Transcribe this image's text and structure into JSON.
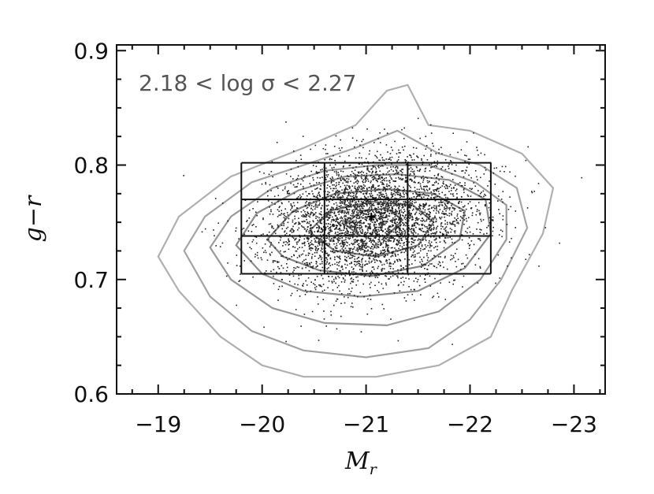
{
  "chart_data": {
    "type": "scatter",
    "title": "",
    "annotation": "2.18 < log σ < 2.27",
    "xlabel": "M",
    "xlabel_subscript": "r",
    "ylabel": "g−r",
    "xlim": [
      -18.6,
      -23.3
    ],
    "ylim": [
      0.6,
      0.905
    ],
    "x_axis_reversed": true,
    "x_ticks": [
      -19,
      -20,
      -21,
      -22,
      -23
    ],
    "x_tick_labels": [
      "−19",
      "−20",
      "−21",
      "−22",
      "−23"
    ],
    "y_ticks": [
      0.6,
      0.7,
      0.8,
      0.9
    ],
    "y_tick_labels": [
      "0.6",
      "0.7",
      "0.8",
      "0.9"
    ],
    "grid": false,
    "legend": "none",
    "points": {
      "center_x": -21.05,
      "center_y": 0.752,
      "spread_x": 0.5,
      "spread_y": 0.028,
      "count": 4200,
      "color": "#222222"
    },
    "bins": {
      "x_edges": [
        -19.8,
        -20.6,
        -21.4,
        -22.2
      ],
      "y_edges": [
        0.705,
        0.738,
        0.77,
        0.802
      ],
      "color": "#111111"
    },
    "center_marker": {
      "x": -21.05,
      "y": 0.755
    },
    "contours": [
      {
        "color": "#b0b0b0",
        "points": [
          [
            -19.0,
            0.72
          ],
          [
            -19.2,
            0.755
          ],
          [
            -19.7,
            0.79
          ],
          [
            -20.4,
            0.815
          ],
          [
            -20.9,
            0.835
          ],
          [
            -21.2,
            0.865
          ],
          [
            -21.4,
            0.87
          ],
          [
            -21.6,
            0.835
          ],
          [
            -22.0,
            0.83
          ],
          [
            -22.5,
            0.81
          ],
          [
            -22.8,
            0.78
          ],
          [
            -22.7,
            0.74
          ],
          [
            -22.4,
            0.69
          ],
          [
            -22.2,
            0.65
          ],
          [
            -21.7,
            0.625
          ],
          [
            -21.1,
            0.615
          ],
          [
            -20.4,
            0.615
          ],
          [
            -20.0,
            0.625
          ],
          [
            -19.6,
            0.65
          ],
          [
            -19.2,
            0.69
          ]
        ]
      },
      {
        "color": "#a4a4a4",
        "points": [
          [
            -19.25,
            0.725
          ],
          [
            -19.45,
            0.755
          ],
          [
            -19.9,
            0.785
          ],
          [
            -20.4,
            0.8
          ],
          [
            -20.9,
            0.815
          ],
          [
            -21.3,
            0.83
          ],
          [
            -21.7,
            0.81
          ],
          [
            -22.1,
            0.8
          ],
          [
            -22.45,
            0.78
          ],
          [
            -22.55,
            0.745
          ],
          [
            -22.3,
            0.7
          ],
          [
            -22.0,
            0.665
          ],
          [
            -21.6,
            0.64
          ],
          [
            -21.0,
            0.632
          ],
          [
            -20.4,
            0.638
          ],
          [
            -19.9,
            0.655
          ],
          [
            -19.5,
            0.685
          ]
        ]
      },
      {
        "color": "#999999",
        "points": [
          [
            -19.5,
            0.728
          ],
          [
            -19.7,
            0.755
          ],
          [
            -20.1,
            0.78
          ],
          [
            -20.6,
            0.795
          ],
          [
            -21.1,
            0.8
          ],
          [
            -21.6,
            0.8
          ],
          [
            -22.05,
            0.785
          ],
          [
            -22.35,
            0.765
          ],
          [
            -22.35,
            0.735
          ],
          [
            -22.1,
            0.7
          ],
          [
            -21.7,
            0.672
          ],
          [
            -21.2,
            0.66
          ],
          [
            -20.6,
            0.662
          ],
          [
            -20.1,
            0.675
          ],
          [
            -19.7,
            0.7
          ]
        ]
      },
      {
        "color": "#8c8c8c",
        "points": [
          [
            -19.75,
            0.73
          ],
          [
            -19.95,
            0.758
          ],
          [
            -20.35,
            0.778
          ],
          [
            -20.8,
            0.79
          ],
          [
            -21.3,
            0.792
          ],
          [
            -21.8,
            0.787
          ],
          [
            -22.15,
            0.77
          ],
          [
            -22.2,
            0.74
          ],
          [
            -21.95,
            0.71
          ],
          [
            -21.5,
            0.69
          ],
          [
            -20.95,
            0.685
          ],
          [
            -20.4,
            0.69
          ],
          [
            -20.0,
            0.705
          ]
        ]
      },
      {
        "color": "#808080",
        "points": [
          [
            -20.05,
            0.735
          ],
          [
            -20.3,
            0.76
          ],
          [
            -20.7,
            0.775
          ],
          [
            -21.2,
            0.779
          ],
          [
            -21.65,
            0.775
          ],
          [
            -21.95,
            0.76
          ],
          [
            -21.9,
            0.735
          ],
          [
            -21.55,
            0.712
          ],
          [
            -21.05,
            0.703
          ],
          [
            -20.55,
            0.708
          ],
          [
            -20.2,
            0.72
          ]
        ]
      },
      {
        "color": "#757575",
        "points": [
          [
            -20.45,
            0.742
          ],
          [
            -20.65,
            0.76
          ],
          [
            -21.05,
            0.768
          ],
          [
            -21.45,
            0.765
          ],
          [
            -21.65,
            0.75
          ],
          [
            -21.5,
            0.73
          ],
          [
            -21.1,
            0.72
          ],
          [
            -20.7,
            0.725
          ]
        ]
      },
      {
        "color": "#6a6a6a",
        "points": [
          [
            -20.8,
            0.748
          ],
          [
            -20.95,
            0.76
          ],
          [
            -21.2,
            0.762
          ],
          [
            -21.35,
            0.752
          ],
          [
            -21.2,
            0.738
          ],
          [
            -20.95,
            0.738
          ]
        ]
      }
    ]
  }
}
